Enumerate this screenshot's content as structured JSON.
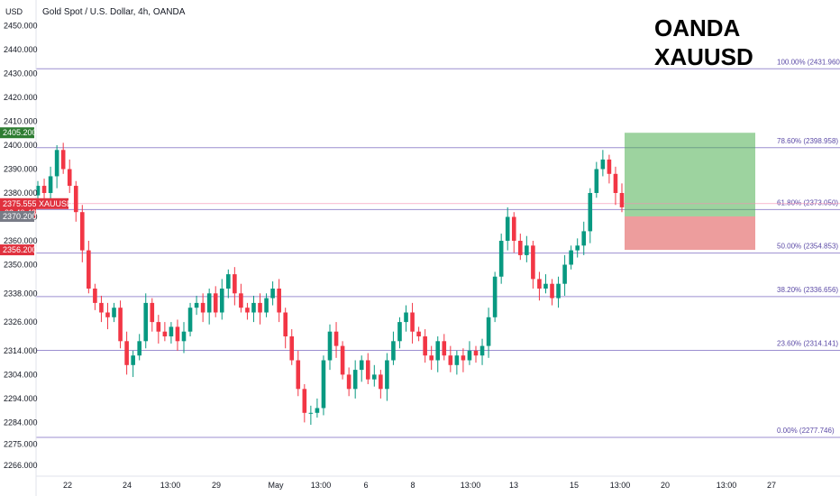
{
  "header": {
    "currency": "USD",
    "title": "Gold Spot / U.S. Dollar, 4h, OANDA",
    "watermark_line1": "OANDA",
    "watermark_line2": "XAUUSD"
  },
  "price_badges": [
    {
      "text": "2405.200",
      "color": "#2e7d32",
      "price": 2405.2
    },
    {
      "text": "2375.555",
      "color": "#e0313e",
      "price": 2375.555,
      "symbol": "XAUUSD",
      "timer": "03:40:48"
    },
    {
      "text": "2370.200",
      "color": "#787b86",
      "price": 2370.2
    },
    {
      "text": "2356.200",
      "color": "#e0313e",
      "price": 2356.2
    }
  ],
  "chart_data": {
    "type": "candlestick",
    "title": "Gold Spot / U.S. Dollar, 4h, OANDA",
    "y_ticks": [
      2450,
      2440,
      2430,
      2420,
      2410,
      2400,
      2390,
      2380,
      2370,
      2360,
      2350,
      2338,
      2326,
      2314,
      2304,
      2294,
      2284,
      2275,
      2266
    ],
    "y_tick_labels": [
      "2450.000",
      "2440.000",
      "2430.000",
      "2420.000",
      "2410.000",
      "2400.000",
      "2390.000",
      "2380.000",
      "2370.000",
      "2360.000",
      "2350.000",
      "2338.000",
      "2326.000",
      "2314.000",
      "2304.000",
      "2294.000",
      "2284.000",
      "2275.000",
      "2266.000"
    ],
    "x_tick_labels": [
      "22",
      "24",
      "13:00",
      "29",
      "May",
      "13:00",
      "6",
      "8",
      "13:00",
      "13",
      "15",
      "13:00",
      "20",
      "13:00",
      "27"
    ],
    "fib_levels": [
      {
        "label": "100.00% (2431.960)",
        "price": 2431.96
      },
      {
        "label": "78.60% (2398.958)",
        "price": 2398.958
      },
      {
        "label": "61.80% (2373.050)",
        "price": 2373.05
      },
      {
        "label": "50.00% (2354.853)",
        "price": 2354.853
      },
      {
        "label": "38.20% (2336.656)",
        "price": 2336.656
      },
      {
        "label": "23.60% (2314.141)",
        "price": 2314.141
      },
      {
        "label": "0.00% (2277.746)",
        "price": 2277.746
      }
    ],
    "position": {
      "entry": 2370.2,
      "target": 2405.2,
      "stop": 2356.2
    },
    "close": [
      2383,
      2380,
      2387,
      2398,
      2390,
      2383,
      2372,
      2356,
      2340,
      2334,
      2330,
      2328,
      2332,
      2318,
      2308,
      2312,
      2318,
      2334,
      2326,
      2322,
      2320,
      2324,
      2318,
      2322,
      2332,
      2334,
      2330,
      2338,
      2330,
      2340,
      2346,
      2338,
      2332,
      2330,
      2334,
      2330,
      2336,
      2340,
      2330,
      2320,
      2310,
      2298,
      2288,
      2288,
      2290,
      2310,
      2322,
      2316,
      2304,
      2298,
      2306,
      2310,
      2302,
      2304,
      2298,
      2310,
      2318,
      2326,
      2330,
      2322,
      2320,
      2312,
      2310,
      2318,
      2312,
      2308,
      2312,
      2310,
      2314,
      2312,
      2316,
      2328,
      2345,
      2360,
      2370,
      2360,
      2354,
      2358,
      2344,
      2340,
      2342,
      2336,
      2342,
      2350,
      2356,
      2358,
      2364,
      2380,
      2390,
      2394,
      2388,
      2380,
      2374
    ]
  }
}
